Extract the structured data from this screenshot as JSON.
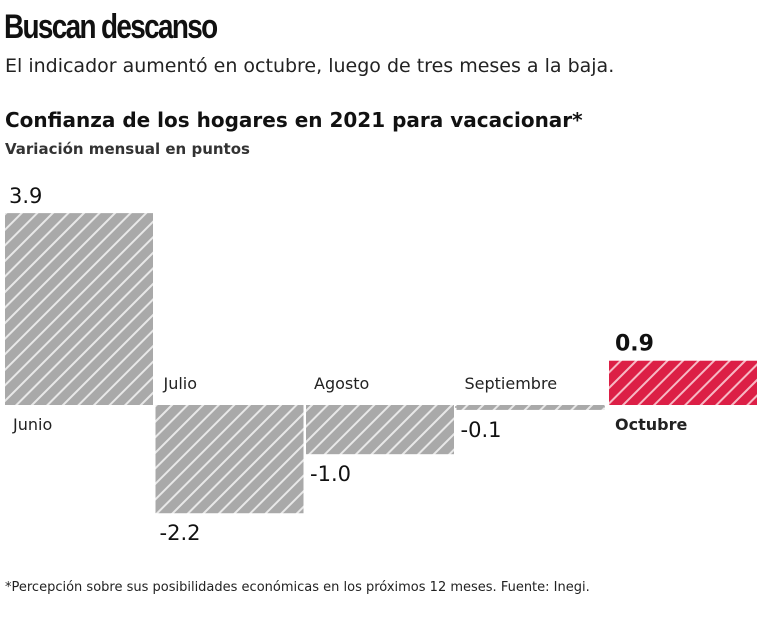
{
  "title": "Buscan descanso",
  "subtitle": "El indicador aumentó en octubre, luego de tres meses a la baja.",
  "footnote": "*Percepción sobre sus posibilidades económicas en los próximos 12 meses. Fuente: Inegi.",
  "chart_data": {
    "type": "bar",
    "title": "Confianza de los hogares en 2021 para vacacionar*",
    "subtitle": "Variación mensual en puntos",
    "categories": [
      "Junio",
      "Julio",
      "Agosto",
      "Septiembre",
      "Octubre"
    ],
    "values": [
      3.9,
      -2.2,
      -1.0,
      -0.1,
      0.9
    ],
    "value_labels": [
      "3.9",
      "-2.2",
      "-1.0",
      "-0.1",
      "0.9"
    ],
    "highlight_index": 4,
    "colors": {
      "default": "#a9a9a9",
      "highlight": "#dc1f46"
    },
    "grid": false,
    "axes_visible": false
  }
}
